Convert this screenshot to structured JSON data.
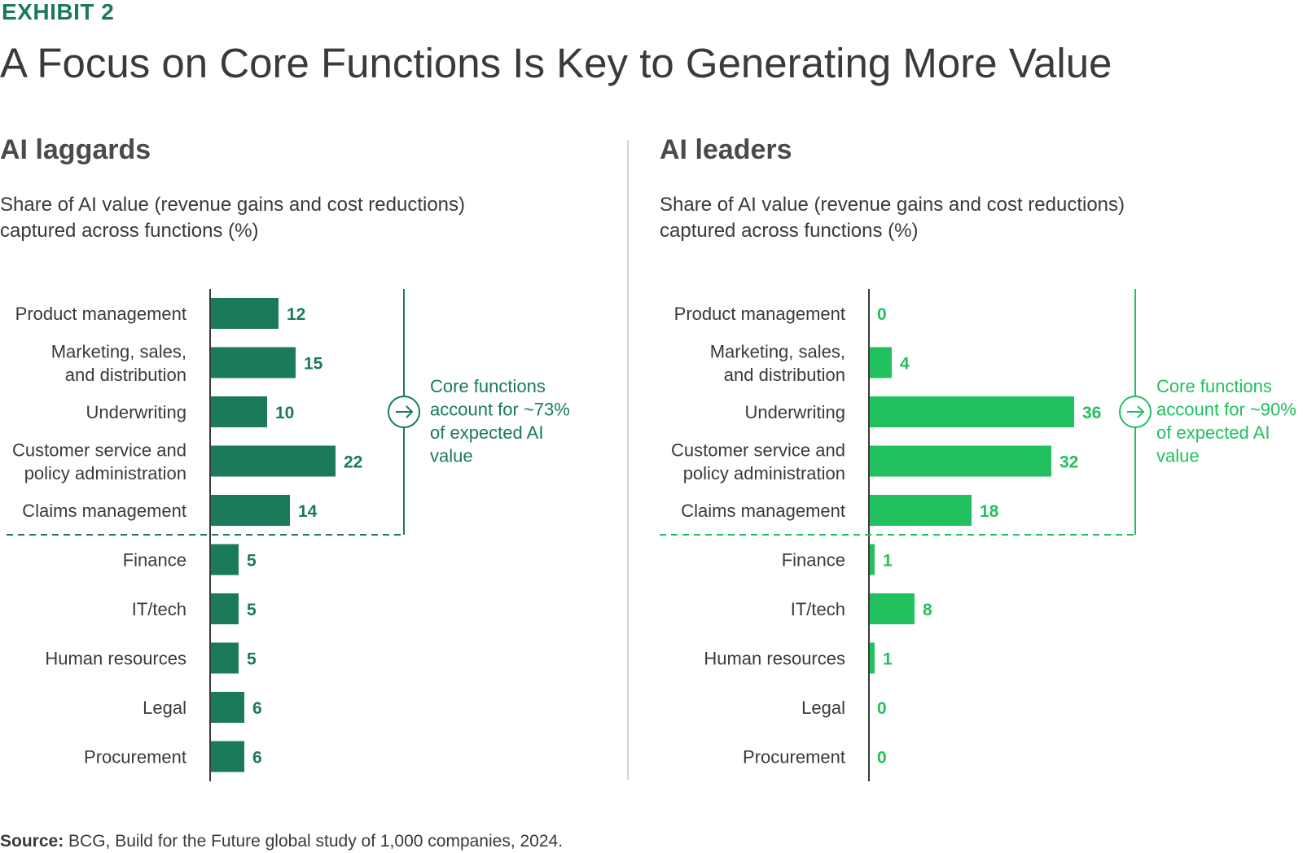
{
  "exhibit_label": "EXHIBIT 2",
  "title": "A Focus on Core Functions Is Key to Generating More Value",
  "source": {
    "label": "Source:",
    "text": " BCG, Build for the Future global study of 1,000 companies, 2024."
  },
  "colors": {
    "laggards": "#1a7a5a",
    "leaders": "#22c05f"
  },
  "chart_data": [
    {
      "type": "bar",
      "orientation": "horizontal",
      "title": "AI laggards",
      "subtitle_lines": [
        "Share of AI value (revenue gains and cost reductions)",
        "captured across functions (%)"
      ],
      "categories": [
        [
          "Product management"
        ],
        [
          "Marketing, sales,",
          "and distribution"
        ],
        [
          "Underwriting"
        ],
        [
          "Customer service and",
          "policy administration"
        ],
        [
          "Claims management"
        ],
        [
          "Finance"
        ],
        [
          "IT/tech"
        ],
        [
          "Human resources"
        ],
        [
          "Legal"
        ],
        [
          "Procurement"
        ]
      ],
      "values": [
        12,
        15,
        10,
        22,
        14,
        5,
        5,
        5,
        6,
        6
      ],
      "core_function_count": 5,
      "annotation_lines": [
        "Core functions",
        "account for ~73%",
        "of expected AI",
        "value"
      ]
    },
    {
      "type": "bar",
      "orientation": "horizontal",
      "title": "AI leaders",
      "subtitle_lines": [
        "Share of AI value (revenue gains and cost reductions)",
        "captured across functions (%)"
      ],
      "categories": [
        [
          "Product management"
        ],
        [
          "Marketing, sales,",
          "and distribution"
        ],
        [
          "Underwriting"
        ],
        [
          "Customer service and",
          "policy administration"
        ],
        [
          "Claims management"
        ],
        [
          "Finance"
        ],
        [
          "IT/tech"
        ],
        [
          "Human resources"
        ],
        [
          "Legal"
        ],
        [
          "Procurement"
        ]
      ],
      "values": [
        0,
        4,
        36,
        32,
        18,
        1,
        8,
        1,
        0,
        0
      ],
      "core_function_count": 5,
      "annotation_lines": [
        "Core functions",
        "account for ~90%",
        "of expected AI",
        "value"
      ]
    }
  ]
}
